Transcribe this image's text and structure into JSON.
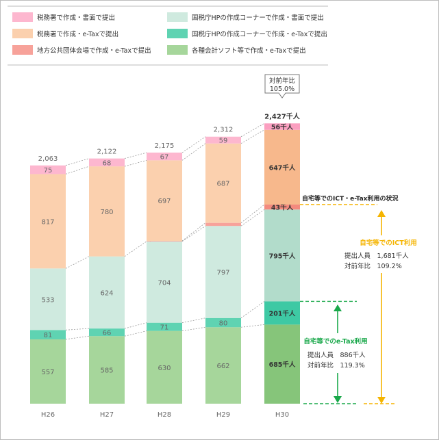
{
  "chart_data": {
    "type": "bar",
    "stacked": true,
    "categories": [
      "H26",
      "H27",
      "H28",
      "H29",
      "H30"
    ],
    "series": [
      {
        "name": "各種会計ソフト等で作成・e-Taxで提出",
        "values": [
          557,
          585,
          630,
          662,
          685
        ],
        "color": "#a6d69b",
        "highlight": "#86c57a"
      },
      {
        "name": "国税庁HPの作成コーナーで作成・e-Taxで提出",
        "values": [
          81,
          66,
          71,
          80,
          201
        ],
        "color": "#5fd3b2",
        "highlight": "#3ec9a4"
      },
      {
        "name": "国税庁HPの作成コーナーで作成・書面で提出",
        "values": [
          533,
          624,
          704,
          797,
          795
        ],
        "color": "#cfeadf",
        "highlight": "#b2dccb"
      },
      {
        "name": "地方公共団体会場で作成・e-Taxで提出",
        "values": [
          null,
          null,
          5,
          27,
          43
        ],
        "color": "#f7a29a",
        "highlight": "#f38a7e"
      },
      {
        "name": "税務署で作成・e-Taxで提出",
        "values": [
          817,
          780,
          697,
          687,
          647
        ],
        "color": "#fbd0ae",
        "highlight": "#f7b88c"
      },
      {
        "name": "税務署で作成・書面で提出",
        "values": [
          75,
          68,
          67,
          59,
          56
        ],
        "color": "#fdb7cf",
        "highlight": "#fb9fc0"
      }
    ],
    "legend": [
      {
        "label": "税務署で作成・書面で提出",
        "color": "#fdb7cf"
      },
      {
        "label": "国税庁HPの作成コーナーで作成・書面で提出",
        "color": "#cfeadf"
      },
      {
        "label": "税務署で作成・e-Taxで提出",
        "color": "#fbd0ae"
      },
      {
        "label": "国税庁HPの作成コーナーで作成・e-Taxで提出",
        "color": "#5fd3b2"
      },
      {
        "label": "地方公共団体会場で作成・e-Taxで提出",
        "color": "#f7a29a"
      },
      {
        "label": "各種会計ソフト等で作成・e-Taxで提出",
        "color": "#a6d69b"
      }
    ],
    "totals": [
      "2,063",
      "2,122",
      "2,175",
      "2,312",
      "2,427千人"
    ],
    "last_labels": [
      "685千人",
      "201千人",
      "795千人",
      "43千人",
      "647千人",
      "56千人"
    ],
    "callout": {
      "line1": "対前年比",
      "line2": "105.0%"
    },
    "ict_title": "自宅等でのICT・e-Tax利用の状況",
    "ict": {
      "title": "自宅等でのICT利用",
      "line1": "提出人員　1,681千人",
      "line2": "対前年比　109.2%",
      "color": "#f5b400"
    },
    "etax": {
      "title": "自宅等でのe-Tax利用",
      "line1": "提出人員　886千人",
      "line2": "対前年比　119.3%",
      "color": "#19a84a"
    },
    "legend_placement": "top",
    "grid": false
  }
}
